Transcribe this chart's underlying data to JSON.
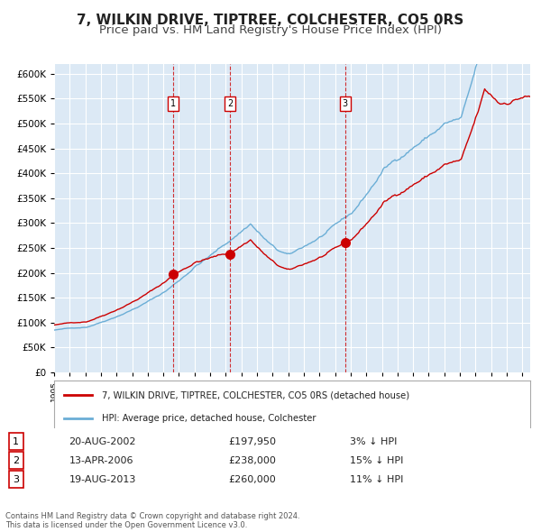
{
  "title": "7, WILKIN DRIVE, TIPTREE, COLCHESTER, CO5 0RS",
  "subtitle": "Price paid vs. HM Land Registry's House Price Index (HPI)",
  "ylabel": "",
  "ylim": [
    0,
    620000
  ],
  "yticks": [
    0,
    50000,
    100000,
    150000,
    200000,
    250000,
    300000,
    350000,
    400000,
    450000,
    500000,
    550000,
    600000
  ],
  "xlim_start": 1995.0,
  "xlim_end": 2025.5,
  "background_color": "#dce9f5",
  "plot_bg": "#dce9f5",
  "grid_color": "#ffffff",
  "hpi_color": "#6baed6",
  "price_color": "#cc0000",
  "sale_marker_color": "#cc0000",
  "vline_color": "#cc0000",
  "transactions": [
    {
      "label": "1",
      "date": 2002.64,
      "price": 197950
    },
    {
      "label": "2",
      "date": 2006.28,
      "price": 238000
    },
    {
      "label": "3",
      "date": 2013.64,
      "price": 260000
    }
  ],
  "transaction_table": [
    {
      "num": "1",
      "date": "20-AUG-2002",
      "price": "£197,950",
      "hpi": "3% ↓ HPI"
    },
    {
      "num": "2",
      "date": "13-APR-2006",
      "price": "£238,000",
      "hpi": "15% ↓ HPI"
    },
    {
      "num": "3",
      "date": "19-AUG-2013",
      "price": "£260,000",
      "hpi": "11% ↓ HPI"
    }
  ],
  "legend_label_price": "7, WILKIN DRIVE, TIPTREE, COLCHESTER, CO5 0RS (detached house)",
  "legend_label_hpi": "HPI: Average price, detached house, Colchester",
  "footer": "Contains HM Land Registry data © Crown copyright and database right 2024.\nThis data is licensed under the Open Government Licence v3.0.",
  "title_fontsize": 11,
  "subtitle_fontsize": 9.5
}
